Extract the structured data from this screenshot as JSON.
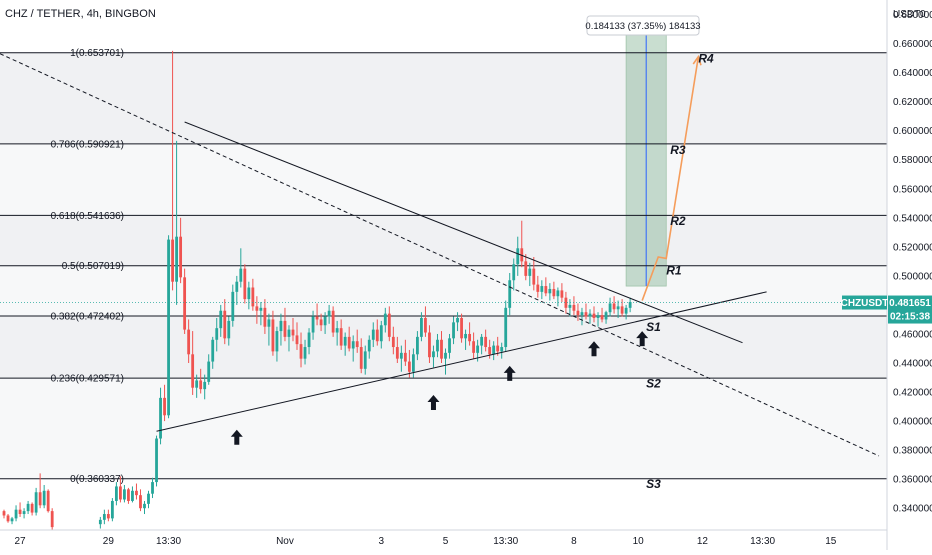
{
  "chart_data": {
    "type": "candlestick",
    "title": "CHZ / TETHER, 4h, BINGBON",
    "currency_label": "USDT",
    "currency_value": "0",
    "ylim": [
      0.325,
      0.69
    ],
    "y_ticks": [
      "0.680000",
      "0.660000",
      "0.640000",
      "0.620000",
      "0.600000",
      "0.580000",
      "0.560000",
      "0.540000",
      "0.520000",
      "0.500000",
      "0.480000",
      "0.460000",
      "0.440000",
      "0.420000",
      "0.400000",
      "0.380000",
      "0.360000",
      "0.340000"
    ],
    "x_ticks": [
      {
        "label": "27",
        "i": -74
      },
      {
        "label": "29",
        "i": -52
      },
      {
        "label": "13:30",
        "i": -37
      },
      {
        "label": "Nov",
        "i": -8
      },
      {
        "label": "3",
        "i": 16
      },
      {
        "label": "5",
        "i": 32
      },
      {
        "label": "13:30",
        "i": 47
      },
      {
        "label": "8",
        "i": 64
      },
      {
        "label": "10",
        "i": 80
      },
      {
        "label": "12",
        "i": 96
      },
      {
        "label": "13:30",
        "i": 111
      },
      {
        "label": "15",
        "i": 128
      }
    ],
    "x_index_range": [
      -79,
      142
    ],
    "fib_levels": [
      {
        "ratio": "1",
        "price": 0.653701,
        "label": "1(0.653701)"
      },
      {
        "ratio": "0.786",
        "price": 0.590921,
        "label": "0.786(0.590921)"
      },
      {
        "ratio": "0.618",
        "price": 0.541636,
        "label": "0.618(0.541636)"
      },
      {
        "ratio": "0.5",
        "price": 0.507019,
        "label": "0.5(0.507019)"
      },
      {
        "ratio": "0.382",
        "price": 0.472402,
        "label": "0.382(0.472402)"
      },
      {
        "ratio": "0.236",
        "price": 0.429571,
        "label": "0.236(0.429571)"
      },
      {
        "ratio": "0",
        "price": 0.360337,
        "label": "0(0.360337)"
      }
    ],
    "level_labels": [
      {
        "text": "R4",
        "i": 95,
        "price": 0.647
      },
      {
        "text": "R3",
        "i": 88,
        "price": 0.584
      },
      {
        "text": "R2",
        "i": 88,
        "price": 0.535
      },
      {
        "text": "R1",
        "i": 87,
        "price": 0.501
      },
      {
        "text": "S1",
        "i": 82,
        "price": 0.462
      },
      {
        "text": "S2",
        "i": 82,
        "price": 0.423
      },
      {
        "text": "S3",
        "i": 82,
        "price": 0.354
      }
    ],
    "current_price": {
      "symbol": "CHZUSDT",
      "price": 0.481651,
      "countdown": "02:15:38"
    },
    "measure": {
      "text": "0.184133 (37.35%) 184133",
      "i_from": 77,
      "i_to": 87,
      "price_from": 0.493,
      "price_to": 0.677
    },
    "trendlines": [
      {
        "name": "dashed-downtrend",
        "style": "dashed",
        "from": {
          "i": -79,
          "price": 0.653
        },
        "to": {
          "i": 140,
          "price": 0.376
        }
      },
      {
        "name": "upper-resistance",
        "style": "solid",
        "from": {
          "i": -33,
          "price": 0.606
        },
        "to": {
          "i": 106,
          "price": 0.454
        }
      },
      {
        "name": "lower-support",
        "style": "solid",
        "from": {
          "i": -40,
          "price": 0.393
        },
        "to": {
          "i": 112,
          "price": 0.489
        }
      }
    ],
    "projection": [
      {
        "i": 81,
        "price": 0.483
      },
      {
        "i": 85,
        "price": 0.513
      },
      {
        "i": 87,
        "price": 0.512
      },
      {
        "i": 95,
        "price": 0.651
      }
    ],
    "support_arrows": [
      {
        "i": -20,
        "price": 0.394
      },
      {
        "i": 29,
        "price": 0.418
      },
      {
        "i": 48,
        "price": 0.438
      },
      {
        "i": 69,
        "price": 0.455
      },
      {
        "i": 81,
        "price": 0.462
      }
    ],
    "candles": [
      [
        -78,
        0.338,
        0.339,
        0.333,
        0.335
      ],
      [
        -77,
        0.335,
        0.336,
        0.33,
        0.331
      ],
      [
        -76,
        0.331,
        0.334,
        0.329,
        0.333
      ],
      [
        -75,
        0.333,
        0.342,
        0.331,
        0.339
      ],
      [
        -74,
        0.339,
        0.344,
        0.334,
        0.336
      ],
      [
        -73,
        0.336,
        0.34,
        0.333,
        0.338
      ],
      [
        -72,
        0.338,
        0.345,
        0.336,
        0.343
      ],
      [
        -71,
        0.343,
        0.344,
        0.335,
        0.337
      ],
      [
        -70,
        0.337,
        0.354,
        0.335,
        0.351
      ],
      [
        -69,
        0.351,
        0.364,
        0.34,
        0.342
      ],
      [
        -68,
        0.342,
        0.356,
        0.34,
        0.352
      ],
      [
        -67,
        0.352,
        0.353,
        0.337,
        0.338
      ],
      [
        -66,
        0.338,
        0.34,
        0.325,
        0.327
      ],
      [
        -54,
        0.329,
        0.334,
        0.326,
        0.332
      ],
      [
        -53,
        0.332,
        0.339,
        0.329,
        0.336
      ],
      [
        -52,
        0.336,
        0.339,
        0.331,
        0.333
      ],
      [
        -51,
        0.333,
        0.347,
        0.331,
        0.345
      ],
      [
        -50,
        0.345,
        0.358,
        0.342,
        0.355
      ],
      [
        -49,
        0.355,
        0.362,
        0.344,
        0.346
      ],
      [
        -48,
        0.346,
        0.356,
        0.344,
        0.353
      ],
      [
        -47,
        0.353,
        0.354,
        0.343,
        0.345
      ],
      [
        -46,
        0.345,
        0.355,
        0.344,
        0.352
      ],
      [
        -45,
        0.352,
        0.357,
        0.346,
        0.349
      ],
      [
        -44,
        0.349,
        0.353,
        0.338,
        0.34
      ],
      [
        -43,
        0.34,
        0.345,
        0.336,
        0.343
      ],
      [
        -42,
        0.343,
        0.352,
        0.34,
        0.35
      ],
      [
        -41,
        0.35,
        0.361,
        0.347,
        0.358
      ],
      [
        -40,
        0.358,
        0.39,
        0.355,
        0.388
      ],
      [
        -39,
        0.388,
        0.423,
        0.384,
        0.416
      ],
      [
        -38,
        0.416,
        0.425,
        0.4,
        0.404
      ],
      [
        -37,
        0.404,
        0.528,
        0.402,
        0.525
      ],
      [
        -36,
        0.525,
        0.655,
        0.49,
        0.496
      ],
      [
        -35,
        0.496,
        0.593,
        0.48,
        0.527
      ],
      [
        -34,
        0.527,
        0.54,
        0.495,
        0.499
      ],
      [
        -33,
        0.499,
        0.505,
        0.46,
        0.463
      ],
      [
        -32,
        0.463,
        0.47,
        0.44,
        0.446
      ],
      [
        -31,
        0.446,
        0.462,
        0.418,
        0.423
      ],
      [
        -30,
        0.423,
        0.432,
        0.416,
        0.428
      ],
      [
        -29,
        0.428,
        0.436,
        0.419,
        0.422
      ],
      [
        -28,
        0.422,
        0.432,
        0.415,
        0.427
      ],
      [
        -27,
        0.427,
        0.446,
        0.425,
        0.441
      ],
      [
        -26,
        0.441,
        0.458,
        0.436,
        0.456
      ],
      [
        -25,
        0.456,
        0.471,
        0.448,
        0.464
      ],
      [
        -24,
        0.464,
        0.48,
        0.458,
        0.476
      ],
      [
        -23,
        0.476,
        0.484,
        0.453,
        0.457
      ],
      [
        -22,
        0.457,
        0.472,
        0.452,
        0.469
      ],
      [
        -21,
        0.469,
        0.494,
        0.465,
        0.489
      ],
      [
        -20,
        0.489,
        0.5,
        0.48,
        0.496
      ],
      [
        -19,
        0.496,
        0.519,
        0.492,
        0.505
      ],
      [
        -18,
        0.505,
        0.508,
        0.481,
        0.484
      ],
      [
        -17,
        0.484,
        0.496,
        0.477,
        0.492
      ],
      [
        -16,
        0.492,
        0.498,
        0.476,
        0.479
      ],
      [
        -15,
        0.479,
        0.486,
        0.467,
        0.476
      ],
      [
        -14,
        0.476,
        0.482,
        0.466,
        0.478
      ],
      [
        -13,
        0.478,
        0.484,
        0.46,
        0.465
      ],
      [
        -12,
        0.465,
        0.474,
        0.452,
        0.47
      ],
      [
        -11,
        0.47,
        0.476,
        0.445,
        0.448
      ],
      [
        -10,
        0.448,
        0.465,
        0.441,
        0.462
      ],
      [
        -9,
        0.462,
        0.474,
        0.452,
        0.469
      ],
      [
        -8,
        0.469,
        0.478,
        0.455,
        0.458
      ],
      [
        -7,
        0.458,
        0.466,
        0.448,
        0.463
      ],
      [
        -6,
        0.463,
        0.471,
        0.455,
        0.459
      ],
      [
        -5,
        0.459,
        0.468,
        0.449,
        0.453
      ],
      [
        -4,
        0.453,
        0.461,
        0.437,
        0.443
      ],
      [
        -3,
        0.443,
        0.456,
        0.439,
        0.451
      ],
      [
        -2,
        0.451,
        0.464,
        0.446,
        0.461
      ],
      [
        -1,
        0.461,
        0.476,
        0.456,
        0.472
      ],
      [
        0,
        0.472,
        0.481,
        0.466,
        0.47
      ],
      [
        1,
        0.47,
        0.474,
        0.462,
        0.466
      ],
      [
        2,
        0.466,
        0.475,
        0.46,
        0.472
      ],
      [
        3,
        0.472,
        0.48,
        0.467,
        0.476
      ],
      [
        4,
        0.476,
        0.479,
        0.458,
        0.461
      ],
      [
        5,
        0.461,
        0.469,
        0.452,
        0.464
      ],
      [
        6,
        0.464,
        0.47,
        0.449,
        0.452
      ],
      [
        7,
        0.452,
        0.461,
        0.445,
        0.458
      ],
      [
        8,
        0.458,
        0.465,
        0.448,
        0.45
      ],
      [
        9,
        0.45,
        0.459,
        0.441,
        0.455
      ],
      [
        10,
        0.455,
        0.463,
        0.447,
        0.451
      ],
      [
        11,
        0.451,
        0.457,
        0.433,
        0.436
      ],
      [
        12,
        0.436,
        0.452,
        0.432,
        0.448
      ],
      [
        13,
        0.448,
        0.459,
        0.443,
        0.456
      ],
      [
        14,
        0.456,
        0.468,
        0.451,
        0.463
      ],
      [
        15,
        0.463,
        0.47,
        0.452,
        0.455
      ],
      [
        16,
        0.455,
        0.469,
        0.45,
        0.466
      ],
      [
        17,
        0.466,
        0.478,
        0.461,
        0.474
      ],
      [
        18,
        0.474,
        0.479,
        0.455,
        0.458
      ],
      [
        19,
        0.458,
        0.465,
        0.446,
        0.451
      ],
      [
        20,
        0.451,
        0.458,
        0.44,
        0.443
      ],
      [
        21,
        0.443,
        0.452,
        0.434,
        0.447
      ],
      [
        22,
        0.447,
        0.456,
        0.438,
        0.441
      ],
      [
        23,
        0.441,
        0.449,
        0.43,
        0.434
      ],
      [
        24,
        0.434,
        0.45,
        0.43,
        0.446
      ],
      [
        25,
        0.446,
        0.462,
        0.442,
        0.458
      ],
      [
        26,
        0.458,
        0.475,
        0.455,
        0.471
      ],
      [
        27,
        0.471,
        0.479,
        0.458,
        0.461
      ],
      [
        28,
        0.461,
        0.466,
        0.44,
        0.444
      ],
      [
        29,
        0.444,
        0.452,
        0.437,
        0.448
      ],
      [
        30,
        0.448,
        0.46,
        0.444,
        0.456
      ],
      [
        31,
        0.456,
        0.462,
        0.44,
        0.443
      ],
      [
        32,
        0.443,
        0.45,
        0.432,
        0.447
      ],
      [
        33,
        0.447,
        0.46,
        0.443,
        0.457
      ],
      [
        34,
        0.457,
        0.472,
        0.453,
        0.468
      ],
      [
        35,
        0.468,
        0.475,
        0.462,
        0.471
      ],
      [
        36,
        0.471,
        0.474,
        0.454,
        0.457
      ],
      [
        37,
        0.457,
        0.463,
        0.449,
        0.46
      ],
      [
        38,
        0.46,
        0.468,
        0.452,
        0.455
      ],
      [
        39,
        0.455,
        0.461,
        0.443,
        0.447
      ],
      [
        40,
        0.447,
        0.456,
        0.441,
        0.452
      ],
      [
        41,
        0.452,
        0.46,
        0.446,
        0.458
      ],
      [
        42,
        0.458,
        0.463,
        0.448,
        0.451
      ],
      [
        43,
        0.451,
        0.456,
        0.443,
        0.446
      ],
      [
        44,
        0.446,
        0.455,
        0.442,
        0.452
      ],
      [
        45,
        0.452,
        0.458,
        0.445,
        0.448
      ],
      [
        46,
        0.448,
        0.454,
        0.443,
        0.451
      ],
      [
        47,
        0.451,
        0.483,
        0.448,
        0.478
      ],
      [
        48,
        0.478,
        0.502,
        0.473,
        0.497
      ],
      [
        49,
        0.497,
        0.512,
        0.49,
        0.508
      ],
      [
        50,
        0.508,
        0.527,
        0.5,
        0.519
      ],
      [
        51,
        0.519,
        0.538,
        0.506,
        0.51
      ],
      [
        52,
        0.51,
        0.515,
        0.497,
        0.5
      ],
      [
        53,
        0.5,
        0.509,
        0.493,
        0.505
      ],
      [
        54,
        0.505,
        0.513,
        0.49,
        0.494
      ],
      [
        55,
        0.494,
        0.5,
        0.485,
        0.489
      ],
      [
        56,
        0.489,
        0.497,
        0.484,
        0.493
      ],
      [
        57,
        0.493,
        0.499,
        0.486,
        0.488
      ],
      [
        58,
        0.488,
        0.495,
        0.483,
        0.491
      ],
      [
        59,
        0.491,
        0.496,
        0.484,
        0.486
      ],
      [
        60,
        0.486,
        0.492,
        0.479,
        0.49
      ],
      [
        61,
        0.49,
        0.495,
        0.482,
        0.485
      ],
      [
        62,
        0.485,
        0.489,
        0.474,
        0.478
      ],
      [
        63,
        0.478,
        0.484,
        0.472,
        0.48
      ],
      [
        64,
        0.48,
        0.486,
        0.473,
        0.476
      ],
      [
        65,
        0.476,
        0.481,
        0.469,
        0.473
      ],
      [
        66,
        0.473,
        0.478,
        0.466,
        0.475
      ],
      [
        67,
        0.475,
        0.481,
        0.47,
        0.472
      ],
      [
        68,
        0.472,
        0.477,
        0.467,
        0.474
      ],
      [
        69,
        0.474,
        0.479,
        0.468,
        0.471
      ],
      [
        70,
        0.471,
        0.475,
        0.465,
        0.473
      ],
      [
        71,
        0.473,
        0.478,
        0.468,
        0.47
      ],
      [
        72,
        0.47,
        0.476,
        0.467,
        0.475
      ],
      [
        73,
        0.475,
        0.485,
        0.472,
        0.481
      ],
      [
        74,
        0.481,
        0.486,
        0.474,
        0.477
      ],
      [
        75,
        0.477,
        0.483,
        0.471,
        0.479
      ],
      [
        76,
        0.479,
        0.484,
        0.472,
        0.474
      ],
      [
        77,
        0.474,
        0.48,
        0.47,
        0.478
      ],
      [
        78,
        0.478,
        0.485,
        0.475,
        0.482
      ]
    ]
  }
}
